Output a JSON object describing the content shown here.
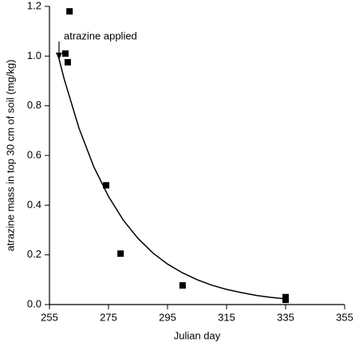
{
  "chart_data": {
    "type": "scatter",
    "x_label": "Julian day",
    "y_label": "atrazine mass in top 30 cm of soil (mg/kg)",
    "annotation": "atrazine applied",
    "x": [
      260.4,
      261.2,
      261.8,
      274.2,
      279.1,
      300.1,
      335,
      335
    ],
    "values": [
      1.01,
      0.975,
      1.18,
      0.48,
      0.205,
      0.077,
      0.03,
      0.019
    ],
    "color": "#000000",
    "fit": {
      "x": [
        258,
        260,
        265,
        270,
        275,
        280,
        285,
        290,
        295,
        300,
        305,
        310,
        315,
        320,
        325,
        330,
        335
      ],
      "values": [
        1.0,
        0.907,
        0.71,
        0.555,
        0.435,
        0.34,
        0.266,
        0.208,
        0.163,
        0.128,
        0.1,
        0.078,
        0.061,
        0.048,
        0.037,
        0.029,
        0.023
      ]
    },
    "xlim": [
      255,
      355
    ],
    "xticks": [
      255,
      275,
      295,
      315,
      335,
      355
    ],
    "ylim": [
      0,
      1.2
    ],
    "yticks": [
      {
        "value": 0,
        "label": "0.0"
      },
      0.2,
      0.4,
      0.6,
      0.8,
      {
        "value": 1,
        "label": "1.0"
      },
      1.2
    ],
    "grid": false
  }
}
